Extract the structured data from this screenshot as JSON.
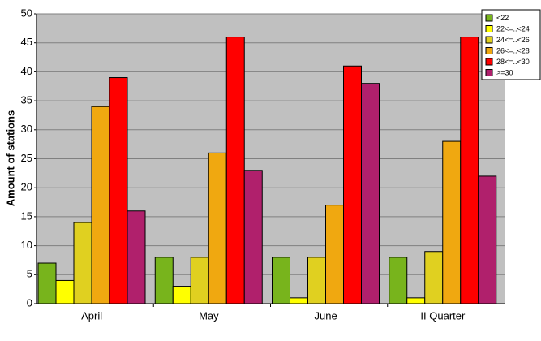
{
  "chart_data": {
    "type": "bar",
    "y_label": "Amount of stations",
    "categories": [
      "April",
      "May",
      "June",
      "II Quarter"
    ],
    "series": [
      {
        "name": "<22",
        "color": "#78b41c",
        "values": [
          7,
          8,
          8,
          8
        ]
      },
      {
        "name": "22<=..<24",
        "color": "#ffff00",
        "values": [
          4,
          3,
          1,
          1
        ]
      },
      {
        "name": "24<=..<26",
        "color": "#e0d020",
        "values": [
          14,
          8,
          8,
          9
        ]
      },
      {
        "name": "26<=..<28",
        "color": "#f0a810",
        "values": [
          34,
          26,
          17,
          28
        ]
      },
      {
        "name": "28<=..<30",
        "color": "#ff0000",
        "values": [
          39,
          46,
          41,
          46
        ]
      },
      {
        "name": ">=30",
        "color": "#b0206c",
        "values": [
          16,
          23,
          38,
          22
        ]
      }
    ],
    "ylim": [
      0,
      50
    ],
    "yticks": [
      0,
      5,
      10,
      15,
      20,
      25,
      30,
      35,
      40,
      45,
      50
    ],
    "grid": true,
    "legend": "top-right"
  }
}
